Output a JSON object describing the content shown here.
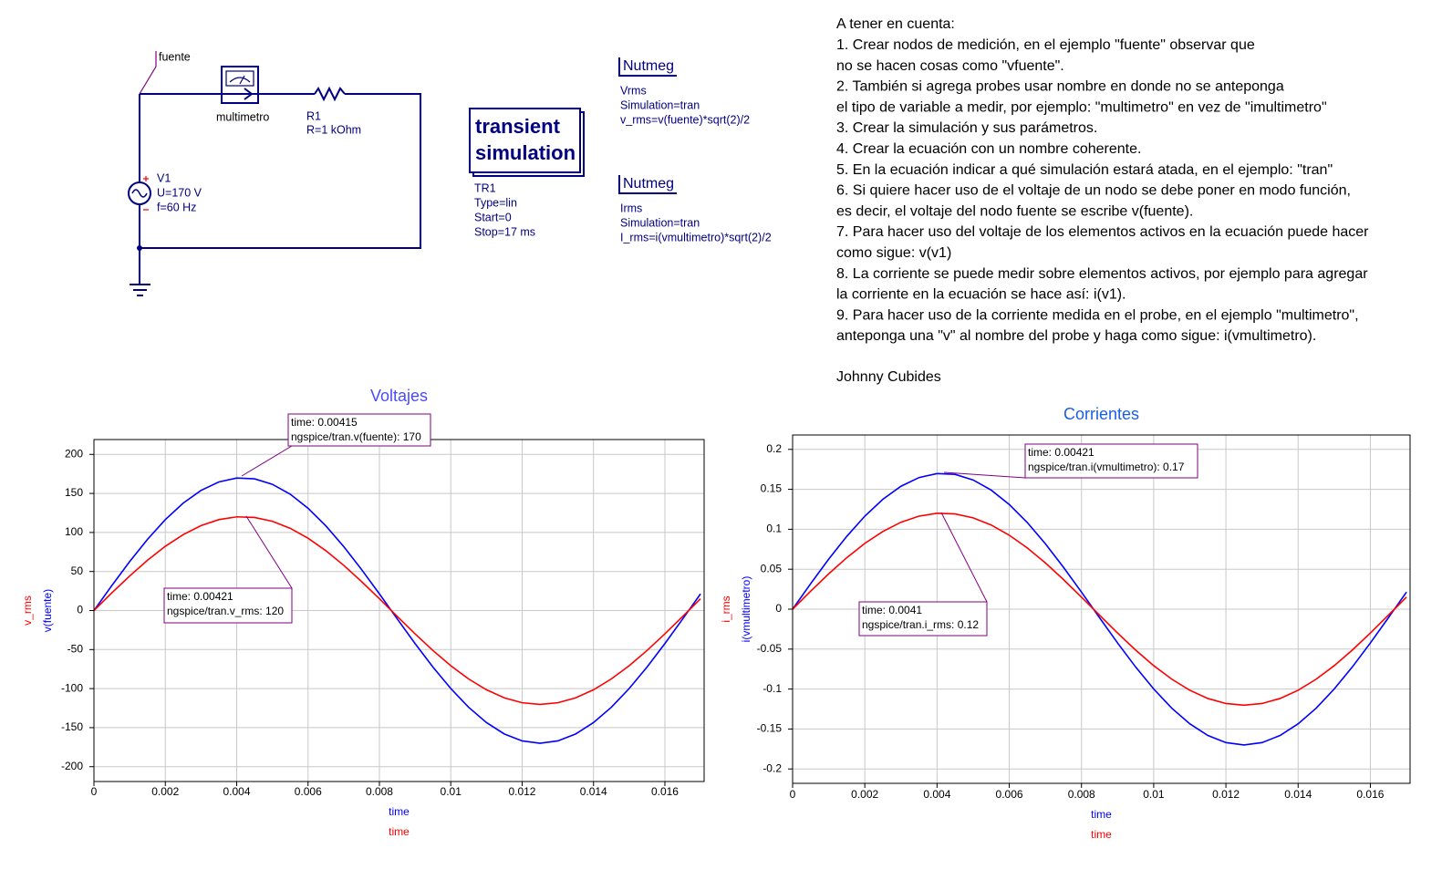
{
  "schematic": {
    "node_label": "fuente",
    "probe_label": "multimetro",
    "resistor": {
      "name": "R1",
      "value": "R=1 kOhm"
    },
    "source": {
      "name": "V1",
      "voltage": "U=170 V",
      "frequency": "f=60 Hz"
    },
    "simulation": {
      "title": [
        "transient",
        "simulation"
      ],
      "params": [
        "TR1",
        "Type=lin",
        "Start=0",
        "Stop=17 ms"
      ]
    },
    "equations": [
      {
        "title": "Nutmeg",
        "lines": [
          "Vrms",
          "Simulation=tran",
          "v_rms=v(fuente)*sqrt(2)/2"
        ]
      },
      {
        "title": "Nutmeg",
        "lines": [
          "Irms",
          "Simulation=tran",
          "I_rms=i(vmultimetro)*sqrt(2)/2"
        ]
      }
    ]
  },
  "notes": {
    "lines": [
      "A tener en cuenta:",
      "1. Crear nodos de medición, en el ejemplo \"fuente\" observar que",
      "no se hacen cosas como \"vfuente\".",
      "2. También si agrega probes usar nombre en donde no se anteponga",
      "el tipo de variable a medir, por ejemplo: \"multimetro\" en vez de \"imultimetro\"",
      "3. Crear la simulación y sus parámetros.",
      "4. Crear la ecuación con un nombre coherente.",
      "5. En la ecuación indicar a qué simulación estará atada, en el ejemplo: \"tran\"",
      "6. Si quiere hacer uso de el voltaje de un nodo se debe poner en modo función,",
      "es decir, el voltaje del nodo fuente se escribe v(fuente).",
      "7. Para hacer uso del voltaje de los elementos activos en la ecuación puede hacer",
      "como sigue: v(v1)",
      "8. La corriente se puede medir sobre elementos activos, por ejemplo para agregar",
      "la corriente en la ecuación se hace así: i(v1).",
      "9. Para hacer uso de la corriente medida en el probe, en el ejemplo \"multimetro\",",
      "anteponga una \"v\" al nombre del probe y haga como sigue: i(vmultimetro)."
    ],
    "author": "Johnny Cubides"
  },
  "chart_data": [
    {
      "type": "line",
      "title": "Voltajes",
      "title_color": "#4a4aff",
      "x": [
        0,
        0.0005,
        0.001,
        0.0015,
        0.002,
        0.0025,
        0.003,
        0.0035,
        0.004,
        0.0045,
        0.005,
        0.0055,
        0.006,
        0.0065,
        0.007,
        0.0075,
        0.008,
        0.0085,
        0.009,
        0.0095,
        0.01,
        0.0105,
        0.011,
        0.0115,
        0.012,
        0.0125,
        0.013,
        0.0135,
        0.014,
        0.0145,
        0.015,
        0.0155,
        0.016,
        0.0165,
        0.017
      ],
      "xlim": [
        0,
        0.0171
      ],
      "xticks": [
        0,
        0.002,
        0.004,
        0.006,
        0.008,
        0.01,
        0.012,
        0.014,
        0.016
      ],
      "ylim": [
        -219,
        219
      ],
      "yticks": [
        200,
        150,
        100,
        50,
        0,
        -50,
        -100,
        -150,
        -200
      ],
      "grid": true,
      "series": [
        {
          "name": "v(fuente)",
          "color": "#0000ff",
          "xlabel": "time",
          "values": [
            0,
            31.9,
            62.6,
            91.1,
            116.4,
            137.5,
            153.8,
            164.7,
            169.7,
            168.7,
            161.7,
            149.0,
            131.0,
            108.4,
            81.9,
            52.5,
            21.3,
            -10.7,
            -42.3,
            -72.4,
            -99.9,
            -123.9,
            -143.5,
            -158.1,
            -167.0,
            -170,
            -167.0,
            -158.1,
            -143.5,
            -123.9,
            -99.9,
            -72.4,
            -42.3,
            -10.7,
            21.3
          ]
        },
        {
          "name": "v_rms",
          "color": "#ff0000",
          "xlabel": "time",
          "values": [
            0,
            22.5,
            44.2,
            64.4,
            82.3,
            97.2,
            108.8,
            116.4,
            120.0,
            119.2,
            114.3,
            105.3,
            92.6,
            76.6,
            57.9,
            37.1,
            15.1,
            -7.5,
            -29.9,
            -51.2,
            -70.7,
            -87.6,
            -101.5,
            -111.8,
            -118.1,
            -120.2,
            -118.1,
            -111.8,
            -101.5,
            -87.6,
            -70.7,
            -51.2,
            -29.9,
            -7.5,
            15.1
          ]
        }
      ],
      "annotations": [
        {
          "text": [
            "time: 0.00415",
            "ngspice/tran.v(fuente): 170"
          ]
        },
        {
          "text": [
            "time: 0.00421",
            "ngspice/tran.v_rms: 120"
          ]
        }
      ]
    },
    {
      "type": "line",
      "title": "Corrientes",
      "title_color": "#1a5fe0",
      "x": [
        0,
        0.0005,
        0.001,
        0.0015,
        0.002,
        0.0025,
        0.003,
        0.0035,
        0.004,
        0.0045,
        0.005,
        0.0055,
        0.006,
        0.0065,
        0.007,
        0.0075,
        0.008,
        0.0085,
        0.009,
        0.0095,
        0.01,
        0.0105,
        0.011,
        0.0115,
        0.012,
        0.0125,
        0.013,
        0.0135,
        0.014,
        0.0145,
        0.015,
        0.0155,
        0.016,
        0.0165,
        0.017
      ],
      "xlim": [
        0,
        0.0171
      ],
      "xticks": [
        0,
        0.002,
        0.004,
        0.006,
        0.008,
        0.01,
        0.012,
        0.014,
        0.016
      ],
      "ylim": [
        -0.218,
        0.218
      ],
      "yticks": [
        0.2,
        0.15,
        0.1,
        0.05,
        0,
        -0.05,
        -0.1,
        -0.15,
        -0.2
      ],
      "grid": true,
      "series": [
        {
          "name": "i(vmultimetro)",
          "color": "#0000ff",
          "xlabel": "time",
          "values": [
            0,
            0.0319,
            0.0626,
            0.0911,
            0.1164,
            0.1375,
            0.1538,
            0.1647,
            0.1697,
            0.1687,
            0.1617,
            0.149,
            0.131,
            0.1084,
            0.0819,
            0.0525,
            0.0213,
            -0.0107,
            -0.0423,
            -0.0724,
            -0.0999,
            -0.1239,
            -0.1435,
            -0.1581,
            -0.167,
            -0.17,
            -0.167,
            -0.1581,
            -0.1435,
            -0.1239,
            -0.0999,
            -0.0724,
            -0.0423,
            -0.0107,
            0.0213
          ]
        },
        {
          "name": "i_rms",
          "color": "#ff0000",
          "xlabel": "time",
          "values": [
            0,
            0.0225,
            0.0442,
            0.0644,
            0.0823,
            0.0972,
            0.1088,
            0.1164,
            0.12,
            0.1192,
            0.1143,
            0.1053,
            0.0926,
            0.0766,
            0.0579,
            0.0371,
            0.0151,
            -0.0075,
            -0.0299,
            -0.0512,
            -0.0707,
            -0.0876,
            -0.1015,
            -0.1118,
            -0.1181,
            -0.1202,
            -0.1181,
            -0.1118,
            -0.1015,
            -0.0876,
            -0.0707,
            -0.0512,
            -0.0299,
            -0.0075,
            0.0151
          ]
        }
      ],
      "annotations": [
        {
          "text": [
            "time: 0.00421",
            "ngspice/tran.i(vmultimetro): 0.17"
          ]
        },
        {
          "text": [
            "time: 0.0041",
            "ngspice/tran.i_rms: 0.12"
          ]
        }
      ]
    }
  ]
}
